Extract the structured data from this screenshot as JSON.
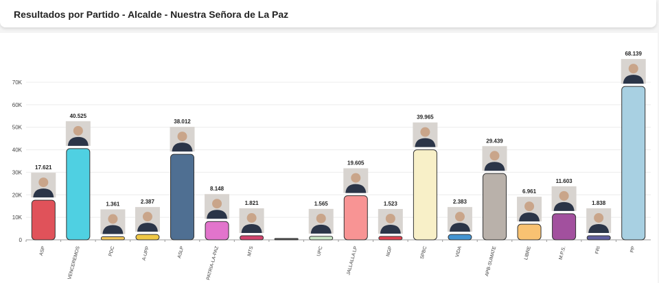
{
  "header": {
    "title": "Resultados por Partido - Alcalde - Nuestra Señora de La Paz"
  },
  "chart_data": {
    "type": "bar",
    "title": "Resultados por Partido - Alcalde - Nuestra Señora de La Paz",
    "xlabel": "",
    "ylabel": "",
    "ylim": [
      0,
      70000
    ],
    "yticks": [
      0,
      10000,
      20000,
      30000,
      40000,
      50000,
      60000,
      70000
    ],
    "ytick_labels": [
      "0",
      "10K",
      "20K",
      "30K",
      "40K",
      "50K",
      "60K",
      "70K"
    ],
    "grid": true,
    "categories": [
      "ASP",
      "VENCEREMOS",
      "PDC",
      "A-UPP",
      "ASLP",
      "PATRIA-LA-PAZ",
      "MTS",
      "",
      "UPC",
      "JALLALLA LP",
      "NGP",
      "SPBC",
      "VIDA",
      "APB-SUMATE",
      "LIBRE",
      "M.P.S.",
      "FRI",
      "PP"
    ],
    "values": [
      17621,
      40525,
      1361,
      2387,
      38012,
      8148,
      1821,
      0,
      1565,
      19605,
      1523,
      39965,
      2383,
      29439,
      6961,
      11603,
      1838,
      68139
    ],
    "value_labels": [
      "17.621",
      "40.525",
      "1.361",
      "2.387",
      "38.012",
      "8.148",
      "1.821",
      "",
      "1.565",
      "19.605",
      "1.523",
      "39.965",
      "2.383",
      "29.439",
      "6.961",
      "11.603",
      "1.838",
      "68.139"
    ],
    "colors": [
      "#e0525a",
      "#4fd0e2",
      "#f2c65a",
      "#f0c846",
      "#4f6f92",
      "#e274cc",
      "#d2446e",
      "#555555",
      "#cbe8c8",
      "#f89494",
      "#e04452",
      "#f8f0c8",
      "#4494d2",
      "#b9b1aa",
      "#f8c272",
      "#a2509e",
      "#60609e",
      "#a8d0e2"
    ]
  }
}
